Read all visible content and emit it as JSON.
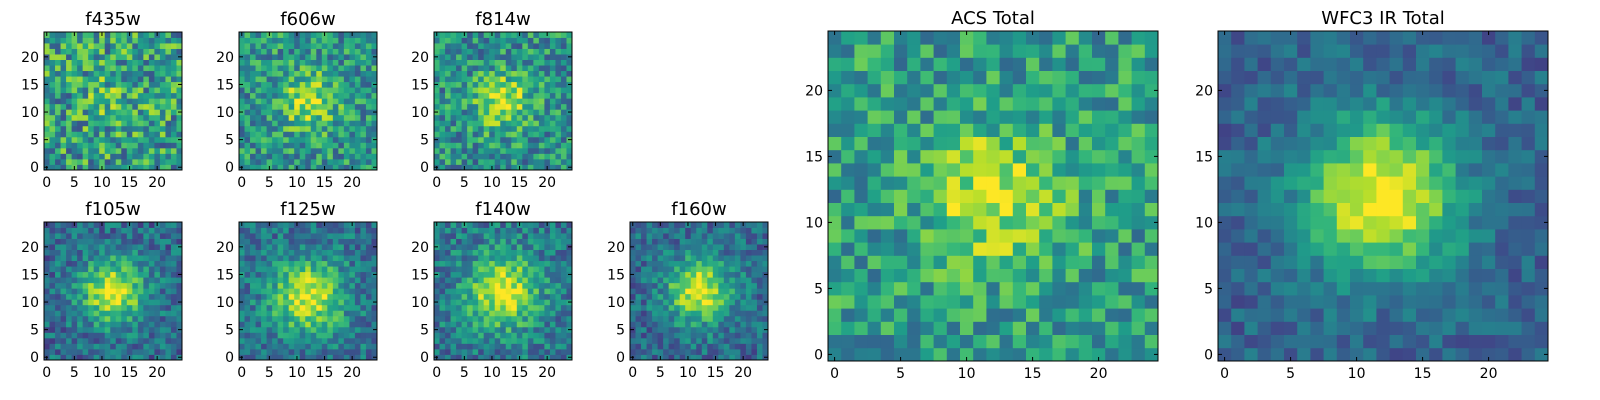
{
  "chart_data": [
    {
      "type": "heatmap",
      "title": "f435w",
      "xticks": [
        "0",
        "5",
        "10",
        "15",
        "20"
      ],
      "yticks": [
        "0",
        "5",
        "10",
        "15",
        "20"
      ],
      "xlim": [
        -0.5,
        24.5
      ],
      "ylim": [
        -0.5,
        24.5
      ],
      "grid": false,
      "colormap": "viridis",
      "pixels": "25x25",
      "noise": 0.62,
      "peak": 0.12,
      "center": [
        12,
        13
      ],
      "sigma": 4,
      "base": 0.55,
      "seed": 11
    },
    {
      "type": "heatmap",
      "title": "f606w",
      "xticks": [
        "0",
        "5",
        "10",
        "15",
        "20"
      ],
      "yticks": [
        "0",
        "5",
        "10",
        "15",
        "20"
      ],
      "xlim": [
        -0.5,
        24.5
      ],
      "ylim": [
        -0.5,
        24.5
      ],
      "grid": false,
      "colormap": "viridis",
      "pixels": "25x25",
      "noise": 0.5,
      "peak": 0.38,
      "center": [
        12,
        12
      ],
      "sigma": 3.5,
      "base": 0.52,
      "seed": 23
    },
    {
      "type": "heatmap",
      "title": "f814w",
      "xticks": [
        "0",
        "5",
        "10",
        "15",
        "20"
      ],
      "yticks": [
        "0",
        "5",
        "10",
        "15",
        "20"
      ],
      "xlim": [
        -0.5,
        24.5
      ],
      "ylim": [
        -0.5,
        24.5
      ],
      "grid": false,
      "colormap": "viridis",
      "pixels": "25x25",
      "noise": 0.5,
      "peak": 0.42,
      "center": [
        12,
        12
      ],
      "sigma": 3.5,
      "base": 0.5,
      "seed": 37
    },
    {
      "type": "heatmap",
      "title": "f105w",
      "xticks": [
        "0",
        "5",
        "10",
        "15",
        "20"
      ],
      "yticks": [
        "0",
        "5",
        "10",
        "15",
        "20"
      ],
      "xlim": [
        -0.5,
        24.5
      ],
      "ylim": [
        -0.5,
        24.5
      ],
      "grid": false,
      "colormap": "viridis",
      "pixels": "25x25",
      "noise": 0.38,
      "peak": 0.62,
      "center": [
        12,
        12
      ],
      "sigma": 4,
      "base": 0.35,
      "seed": 41
    },
    {
      "type": "heatmap",
      "title": "f125w",
      "xticks": [
        "0",
        "5",
        "10",
        "15",
        "20"
      ],
      "yticks": [
        "0",
        "5",
        "10",
        "15",
        "20"
      ],
      "xlim": [
        -0.5,
        24.5
      ],
      "ylim": [
        -0.5,
        24.5
      ],
      "grid": false,
      "colormap": "viridis",
      "pixels": "25x25",
      "noise": 0.38,
      "peak": 0.58,
      "center": [
        12,
        11
      ],
      "sigma": 4.5,
      "base": 0.38,
      "seed": 53
    },
    {
      "type": "heatmap",
      "title": "f140w",
      "xticks": [
        "0",
        "5",
        "10",
        "15",
        "20"
      ],
      "yticks": [
        "0",
        "5",
        "10",
        "15",
        "20"
      ],
      "xlim": [
        -0.5,
        24.5
      ],
      "ylim": [
        -0.5,
        24.5
      ],
      "grid": false,
      "colormap": "viridis",
      "pixels": "25x25",
      "noise": 0.4,
      "peak": 0.58,
      "center": [
        12,
        12
      ],
      "sigma": 4.5,
      "base": 0.4,
      "seed": 67
    },
    {
      "type": "heatmap",
      "title": "f160w",
      "xticks": [
        "0",
        "5",
        "10",
        "15",
        "20"
      ],
      "yticks": [
        "0",
        "5",
        "10",
        "15",
        "20"
      ],
      "xlim": [
        -0.5,
        24.5
      ],
      "ylim": [
        -0.5,
        24.5
      ],
      "grid": false,
      "colormap": "viridis",
      "pixels": "25x25",
      "noise": 0.36,
      "peak": 0.62,
      "center": [
        12,
        12
      ],
      "sigma": 4,
      "base": 0.35,
      "seed": 79
    },
    {
      "type": "heatmap",
      "title": "ACS Total",
      "xticks": [
        "0",
        "5",
        "10",
        "15",
        "20"
      ],
      "yticks": [
        "0",
        "5",
        "10",
        "15",
        "20"
      ],
      "xlim": [
        -0.5,
        24.5
      ],
      "ylim": [
        -0.5,
        24.5
      ],
      "grid": false,
      "colormap": "viridis",
      "pixels": "25x25",
      "noise": 0.45,
      "peak": 0.38,
      "center": [
        12,
        12
      ],
      "sigma": 3.5,
      "base": 0.55,
      "seed": 97
    },
    {
      "type": "heatmap",
      "title": "WFC3 IR Total",
      "xticks": [
        "0",
        "5",
        "10",
        "15",
        "20"
      ],
      "yticks": [
        "0",
        "5",
        "10",
        "15",
        "20"
      ],
      "xlim": [
        -0.5,
        24.5
      ],
      "ylim": [
        -0.5,
        24.5
      ],
      "grid": false,
      "colormap": "viridis",
      "pixels": "25x25",
      "noise": 0.25,
      "peak": 0.72,
      "center": [
        12,
        12
      ],
      "sigma": 4,
      "base": 0.32,
      "seed": 101
    }
  ]
}
